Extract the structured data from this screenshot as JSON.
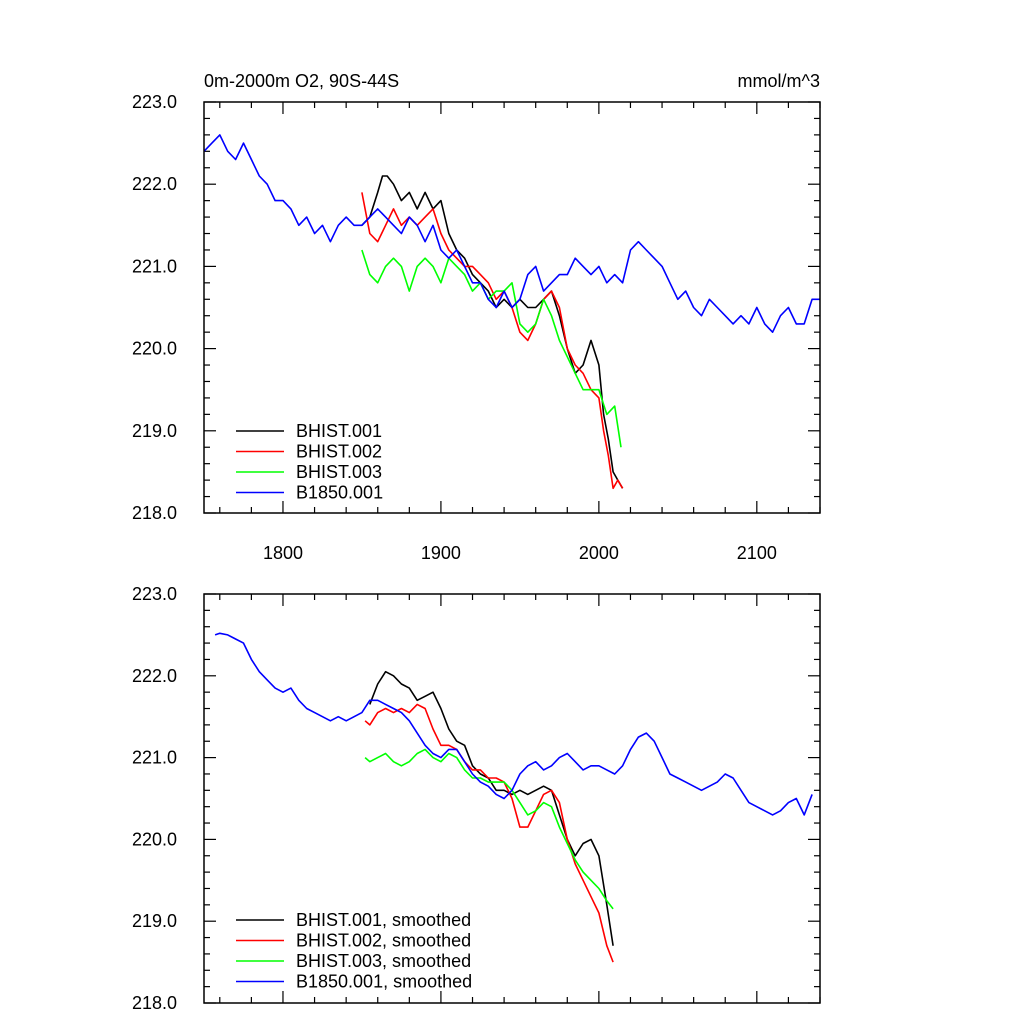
{
  "chart_data": [
    {
      "type": "line",
      "title_left": "0m-2000m O2, 90S-44S",
      "title_right": "mmol/m^3",
      "xlim": [
        1750,
        2140
      ],
      "ylim": [
        218.0,
        223.0
      ],
      "x_ticks": [
        1800,
        1900,
        2000,
        2100
      ],
      "y_ticks": [
        218.0,
        219.0,
        220.0,
        221.0,
        222.0,
        223.0
      ],
      "x_tick_labels": [
        "1800",
        "1900",
        "2000",
        "2100"
      ],
      "y_tick_labels": [
        "218.0",
        "219.0",
        "220.0",
        "221.0",
        "222.0",
        "223.0"
      ],
      "legend_position": "bottom-left",
      "series": [
        {
          "name": "BHIST.001",
          "color": "#000000",
          "x": [
            1850,
            1855,
            1860,
            1863,
            1866,
            1870,
            1875,
            1880,
            1885,
            1890,
            1895,
            1900,
            1905,
            1910,
            1915,
            1920,
            1925,
            1930,
            1935,
            1940,
            1945,
            1950,
            1955,
            1960,
            1965,
            1970,
            1975,
            1980,
            1985,
            1990,
            1995,
            2000,
            2003,
            2006,
            2009,
            2012,
            2015
          ],
          "y": [
            221.5,
            221.6,
            221.9,
            222.1,
            222.1,
            222.0,
            221.8,
            221.9,
            221.7,
            221.9,
            221.7,
            221.8,
            221.4,
            221.2,
            221.1,
            220.9,
            220.8,
            220.7,
            220.5,
            220.6,
            220.5,
            220.6,
            220.5,
            220.5,
            220.6,
            220.7,
            220.4,
            220.0,
            219.7,
            219.8,
            220.1,
            219.8,
            219.2,
            218.9,
            218.5,
            218.4,
            218.3
          ]
        },
        {
          "name": "BHIST.002",
          "color": "#ff0000",
          "x": [
            1850,
            1855,
            1860,
            1865,
            1870,
            1875,
            1880,
            1885,
            1890,
            1895,
            1900,
            1905,
            1910,
            1915,
            1920,
            1925,
            1930,
            1935,
            1940,
            1945,
            1950,
            1955,
            1960,
            1965,
            1970,
            1975,
            1980,
            1985,
            1990,
            1995,
            2000,
            2003,
            2006,
            2009,
            2012,
            2015
          ],
          "y": [
            221.9,
            221.4,
            221.3,
            221.5,
            221.7,
            221.5,
            221.6,
            221.5,
            221.6,
            221.7,
            221.4,
            221.2,
            221.1,
            221.0,
            221.0,
            220.9,
            220.8,
            220.6,
            220.7,
            220.5,
            220.2,
            220.1,
            220.3,
            220.6,
            220.7,
            220.5,
            220.0,
            219.8,
            219.7,
            219.5,
            219.4,
            219.0,
            218.7,
            218.3,
            218.4,
            218.3
          ]
        },
        {
          "name": "BHIST.003",
          "color": "#00ff00",
          "x": [
            1850,
            1855,
            1860,
            1865,
            1870,
            1875,
            1880,
            1885,
            1890,
            1895,
            1900,
            1905,
            1910,
            1915,
            1920,
            1925,
            1930,
            1935,
            1940,
            1945,
            1950,
            1955,
            1960,
            1965,
            1970,
            1975,
            1980,
            1985,
            1990,
            1995,
            2000,
            2005,
            2010,
            2014
          ],
          "y": [
            221.2,
            220.9,
            220.8,
            221.0,
            221.1,
            221.0,
            220.7,
            221.0,
            221.1,
            221.0,
            220.8,
            221.1,
            221.0,
            220.9,
            220.7,
            220.8,
            220.6,
            220.7,
            220.7,
            220.8,
            220.3,
            220.2,
            220.3,
            220.6,
            220.4,
            220.1,
            219.9,
            219.7,
            219.5,
            219.5,
            219.5,
            219.2,
            219.3,
            218.8
          ]
        },
        {
          "name": "B1850.001",
          "color": "#0000ff",
          "x": [
            1750,
            1755,
            1760,
            1765,
            1770,
            1775,
            1780,
            1785,
            1790,
            1795,
            1800,
            1805,
            1810,
            1815,
            1820,
            1825,
            1830,
            1835,
            1840,
            1845,
            1850,
            1855,
            1860,
            1865,
            1870,
            1875,
            1880,
            1885,
            1890,
            1895,
            1900,
            1905,
            1910,
            1915,
            1920,
            1925,
            1930,
            1935,
            1940,
            1945,
            1950,
            1955,
            1960,
            1965,
            1970,
            1975,
            1980,
            1985,
            1990,
            1995,
            2000,
            2005,
            2010,
            2015,
            2020,
            2025,
            2030,
            2035,
            2040,
            2045,
            2050,
            2055,
            2060,
            2065,
            2070,
            2075,
            2080,
            2085,
            2090,
            2095,
            2100,
            2105,
            2110,
            2115,
            2120,
            2125,
            2130,
            2135,
            2140
          ],
          "y": [
            222.4,
            222.5,
            222.6,
            222.4,
            222.3,
            222.5,
            222.3,
            222.1,
            222.0,
            221.8,
            221.8,
            221.7,
            221.5,
            221.6,
            221.4,
            221.5,
            221.3,
            221.5,
            221.6,
            221.5,
            221.5,
            221.6,
            221.7,
            221.6,
            221.5,
            221.4,
            221.6,
            221.5,
            221.3,
            221.5,
            221.2,
            221.1,
            221.2,
            221.0,
            220.8,
            220.8,
            220.6,
            220.5,
            220.7,
            220.5,
            220.6,
            220.9,
            221.0,
            220.7,
            220.8,
            220.9,
            220.9,
            221.1,
            221.0,
            220.9,
            221.0,
            220.8,
            220.9,
            220.8,
            221.2,
            221.3,
            221.2,
            221.1,
            221.0,
            220.8,
            220.6,
            220.7,
            220.5,
            220.4,
            220.6,
            220.5,
            220.4,
            220.3,
            220.4,
            220.3,
            220.5,
            220.3,
            220.2,
            220.4,
            220.5,
            220.3,
            220.3,
            220.6,
            220.6
          ]
        }
      ]
    },
    {
      "type": "line",
      "xlim": [
        1750,
        2140
      ],
      "ylim": [
        218.0,
        223.0
      ],
      "x_ticks": [
        1800,
        1900,
        2000,
        2100
      ],
      "y_ticks": [
        218.0,
        219.0,
        220.0,
        221.0,
        222.0,
        223.0
      ],
      "y_tick_labels": [
        "218.0",
        "219.0",
        "220.0",
        "221.0",
        "222.0",
        "223.0"
      ],
      "legend_position": "bottom-left",
      "series": [
        {
          "name": "BHIST.001, smoothed",
          "color": "#000000",
          "x": [
            1855,
            1860,
            1865,
            1870,
            1875,
            1880,
            1885,
            1890,
            1895,
            1900,
            1905,
            1910,
            1915,
            1920,
            1925,
            1930,
            1935,
            1940,
            1945,
            1950,
            1955,
            1960,
            1965,
            1970,
            1975,
            1980,
            1985,
            1990,
            1995,
            2000,
            2005,
            2009
          ],
          "y": [
            221.65,
            221.9,
            222.05,
            222.0,
            221.9,
            221.85,
            221.7,
            221.75,
            221.8,
            221.6,
            221.35,
            221.2,
            221.15,
            220.9,
            220.8,
            220.75,
            220.6,
            220.6,
            220.55,
            220.6,
            220.55,
            220.6,
            220.65,
            220.6,
            220.3,
            220.0,
            219.8,
            219.95,
            220.0,
            219.8,
            219.2,
            218.7
          ]
        },
        {
          "name": "BHIST.002, smoothed",
          "color": "#ff0000",
          "x": [
            1852,
            1855,
            1860,
            1865,
            1870,
            1875,
            1880,
            1885,
            1890,
            1895,
            1900,
            1905,
            1910,
            1915,
            1920,
            1925,
            1930,
            1935,
            1940,
            1945,
            1950,
            1955,
            1960,
            1965,
            1970,
            1975,
            1980,
            1985,
            1990,
            1995,
            2000,
            2005,
            2009
          ],
          "y": [
            221.45,
            221.4,
            221.55,
            221.6,
            221.55,
            221.6,
            221.55,
            221.65,
            221.6,
            221.35,
            221.15,
            221.15,
            221.1,
            220.95,
            220.85,
            220.85,
            220.75,
            220.75,
            220.7,
            220.5,
            220.15,
            220.15,
            220.35,
            220.55,
            220.6,
            220.45,
            220.0,
            219.7,
            219.5,
            219.3,
            219.1,
            218.7,
            218.5
          ]
        },
        {
          "name": "BHIST.003, smoothed",
          "color": "#00ff00",
          "x": [
            1852,
            1855,
            1860,
            1865,
            1870,
            1875,
            1880,
            1885,
            1890,
            1895,
            1900,
            1905,
            1910,
            1915,
            1920,
            1925,
            1930,
            1935,
            1940,
            1945,
            1950,
            1955,
            1960,
            1965,
            1970,
            1975,
            1980,
            1985,
            1990,
            1995,
            2000,
            2005,
            2009
          ],
          "y": [
            221.0,
            220.95,
            221.0,
            221.05,
            220.95,
            220.9,
            220.95,
            221.05,
            221.1,
            221.0,
            220.95,
            221.05,
            221.0,
            220.85,
            220.75,
            220.75,
            220.7,
            220.7,
            220.7,
            220.6,
            220.45,
            220.3,
            220.35,
            220.45,
            220.4,
            220.15,
            219.95,
            219.75,
            219.6,
            219.5,
            219.4,
            219.25,
            219.15
          ]
        },
        {
          "name": "B1850.001, smoothed",
          "color": "#0000ff",
          "x": [
            1757,
            1760,
            1765,
            1770,
            1775,
            1780,
            1785,
            1790,
            1795,
            1800,
            1805,
            1810,
            1815,
            1820,
            1825,
            1830,
            1835,
            1840,
            1845,
            1850,
            1855,
            1860,
            1865,
            1870,
            1875,
            1880,
            1885,
            1890,
            1895,
            1900,
            1905,
            1910,
            1915,
            1920,
            1925,
            1930,
            1935,
            1940,
            1945,
            1950,
            1955,
            1960,
            1965,
            1970,
            1975,
            1980,
            1985,
            1990,
            1995,
            2000,
            2005,
            2010,
            2015,
            2020,
            2025,
            2030,
            2035,
            2040,
            2045,
            2050,
            2055,
            2060,
            2065,
            2070,
            2075,
            2080,
            2085,
            2090,
            2095,
            2100,
            2105,
            2110,
            2115,
            2120,
            2125,
            2130,
            2135
          ],
          "y": [
            222.5,
            222.52,
            222.5,
            222.45,
            222.4,
            222.2,
            222.05,
            221.95,
            221.85,
            221.8,
            221.85,
            221.7,
            221.6,
            221.55,
            221.5,
            221.45,
            221.5,
            221.45,
            221.5,
            221.55,
            221.7,
            221.7,
            221.65,
            221.6,
            221.55,
            221.45,
            221.3,
            221.15,
            221.05,
            221.0,
            221.1,
            221.1,
            220.95,
            220.8,
            220.7,
            220.65,
            220.55,
            220.5,
            220.6,
            220.8,
            220.9,
            220.95,
            220.85,
            220.9,
            221.0,
            221.05,
            220.95,
            220.85,
            220.9,
            220.9,
            220.85,
            220.8,
            220.9,
            221.1,
            221.25,
            221.3,
            221.2,
            221.0,
            220.8,
            220.75,
            220.7,
            220.65,
            220.6,
            220.65,
            220.7,
            220.8,
            220.75,
            220.6,
            220.45,
            220.4,
            220.35,
            220.3,
            220.35,
            220.45,
            220.5,
            220.3,
            220.55
          ]
        }
      ]
    }
  ]
}
